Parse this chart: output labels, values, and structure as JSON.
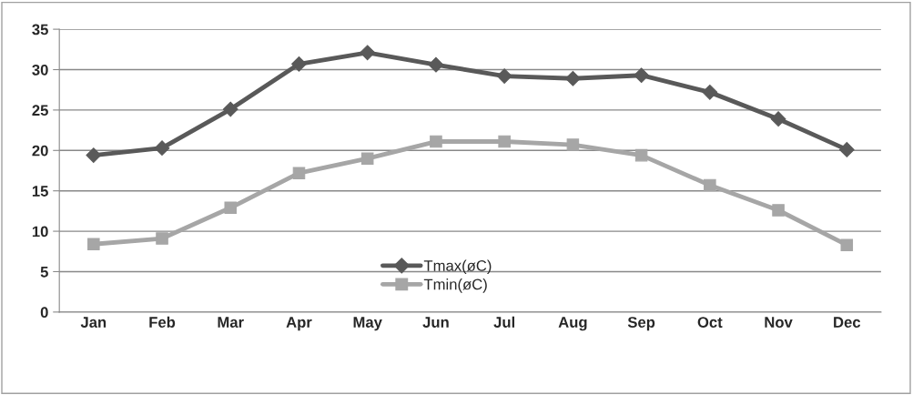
{
  "chart_data": {
    "type": "line",
    "categories": [
      "Jan",
      "Feb",
      "Mar",
      "Apr",
      "May",
      "Jun",
      "Jul",
      "Aug",
      "Sep",
      "Oct",
      "Nov",
      "Dec"
    ],
    "series": [
      {
        "name": "Tmax(øC)",
        "color": "#595959",
        "marker": "diamond",
        "values": [
          19.4,
          20.3,
          25.1,
          30.7,
          32.1,
          30.6,
          29.2,
          28.9,
          29.3,
          27.2,
          23.9,
          20.1
        ]
      },
      {
        "name": "Tmin(øC)",
        "color": "#a6a6a6",
        "marker": "square",
        "values": [
          8.4,
          9.1,
          12.9,
          17.2,
          19.0,
          21.1,
          21.1,
          20.7,
          19.4,
          15.7,
          12.6,
          8.3
        ]
      }
    ],
    "ylim": [
      0,
      35
    ],
    "yticks": [
      0,
      5,
      10,
      15,
      20,
      25,
      30,
      35
    ],
    "grid": "y",
    "legend": "bottom",
    "line_style": "solid"
  }
}
